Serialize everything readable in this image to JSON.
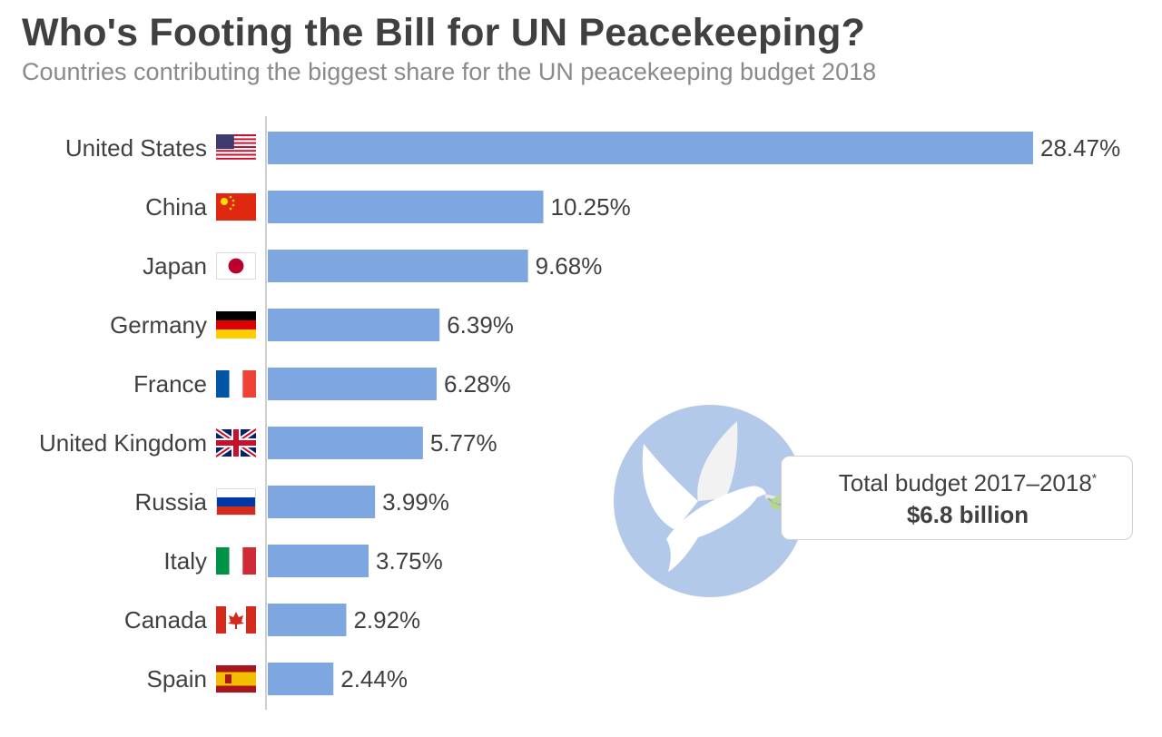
{
  "title": "Who's Footing the Bill for UN Peacekeeping?",
  "subtitle": "Countries contributing the biggest share for the UN peacekeeping budget 2018",
  "callout": {
    "label": "Total budget 2017–2018",
    "footnote_mark": "*",
    "value": "$6.8 billion"
  },
  "colors": {
    "bar": "#7ea6e0",
    "dove_circle": "#b3c9ea"
  },
  "chart_data": {
    "type": "bar",
    "orientation": "horizontal",
    "categories": [
      "United States",
      "China",
      "Japan",
      "Germany",
      "France",
      "United Kingdom",
      "Russia",
      "Italy",
      "Canada",
      "Spain"
    ],
    "values": [
      28.47,
      10.25,
      9.68,
      6.39,
      6.28,
      5.77,
      3.99,
      3.75,
      2.92,
      2.44
    ],
    "value_labels": [
      "28.47%",
      "10.25%",
      "9.68%",
      "6.39%",
      "6.28%",
      "5.77%",
      "3.99%",
      "3.75%",
      "2.92%",
      "2.44%"
    ],
    "flags": [
      "us-flag-icon",
      "china-flag-icon",
      "japan-flag-icon",
      "germany-flag-icon",
      "france-flag-icon",
      "uk-flag-icon",
      "russia-flag-icon",
      "italy-flag-icon",
      "canada-flag-icon",
      "spain-flag-icon"
    ],
    "title": "Who's Footing the Bill for UN Peacekeeping?",
    "xlabel": "",
    "ylabel": "",
    "xlim": [
      0,
      28.47
    ],
    "grid": false,
    "legend": "none"
  }
}
